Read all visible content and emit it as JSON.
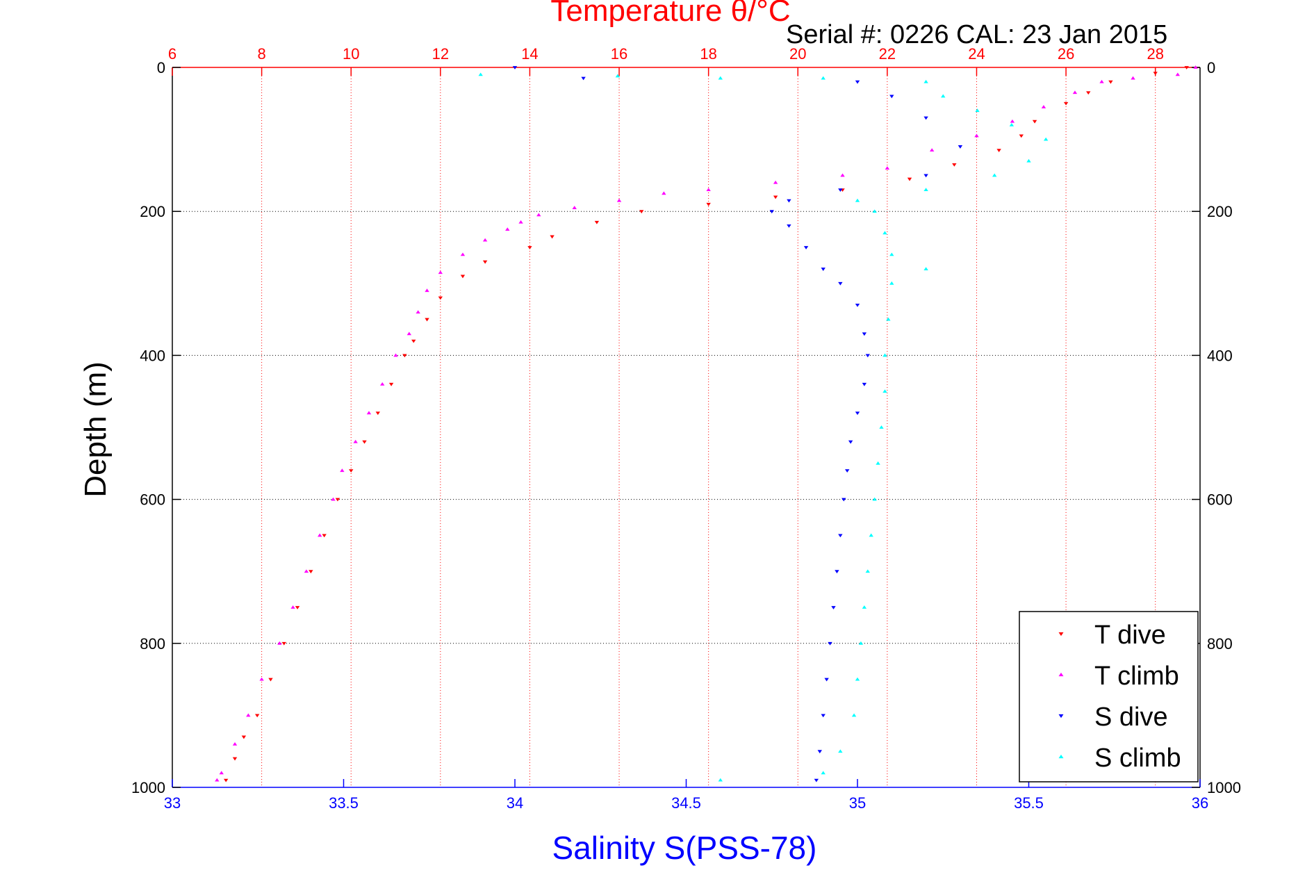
{
  "chart_data": {
    "type": "scatter",
    "title": "Temperature θ/°C",
    "subtitle": "Serial #: 0226  CAL: 23 Jan 2015",
    "xlabel": "Salinity S(PSS-78)",
    "ylabel": "Depth (m)",
    "x_bottom": {
      "quantity": "Salinity",
      "range": [
        33,
        36
      ],
      "ticks": [
        33,
        33.5,
        34,
        34.5,
        35,
        35.5,
        36
      ],
      "tick_labels": [
        "33",
        "33.5",
        "34",
        "34.5",
        "35",
        "35.5",
        "36"
      ],
      "color": "#0000ff"
    },
    "x_top": {
      "quantity": "Temperature",
      "range": [
        6,
        29
      ],
      "ticks": [
        6,
        8,
        10,
        12,
        14,
        16,
        18,
        20,
        22,
        24,
        26,
        28
      ],
      "tick_labels": [
        "6",
        "8",
        "10",
        "12",
        "14",
        "16",
        "18",
        "20",
        "22",
        "24",
        "26",
        "28"
      ],
      "color": "#ff0000",
      "grid": true
    },
    "y": {
      "range": [
        0,
        1000
      ],
      "reversed": true,
      "ticks": [
        0,
        200,
        400,
        600,
        800,
        1000
      ],
      "tick_labels": [
        "0",
        "200",
        "400",
        "600",
        "800",
        "1000"
      ],
      "grid": true
    },
    "legend": {
      "placement": "bottom-right",
      "entries": [
        {
          "label": "T dive",
          "color": "#ff0000",
          "marker": "triangle-down"
        },
        {
          "label": "T climb",
          "color": "#ff00ff",
          "marker": "triangle-up"
        },
        {
          "label": "S dive",
          "color": "#0000ff",
          "marker": "triangle-down"
        },
        {
          "label": "S climb",
          "color": "#00ffff",
          "marker": "triangle-up"
        }
      ]
    },
    "series": [
      {
        "name": "T dive",
        "axis": "top",
        "color": "#ff0000",
        "marker": "triangle-down",
        "points": [
          [
            28.7,
            0
          ],
          [
            28.0,
            8
          ],
          [
            27.0,
            20
          ],
          [
            26.5,
            35
          ],
          [
            26.0,
            50
          ],
          [
            25.3,
            75
          ],
          [
            25.0,
            95
          ],
          [
            24.5,
            115
          ],
          [
            23.5,
            135
          ],
          [
            22.5,
            155
          ],
          [
            21.0,
            170
          ],
          [
            19.5,
            180
          ],
          [
            18.0,
            190
          ],
          [
            16.5,
            200
          ],
          [
            15.5,
            215
          ],
          [
            14.5,
            235
          ],
          [
            14.0,
            250
          ],
          [
            13.0,
            270
          ],
          [
            12.5,
            290
          ],
          [
            12.0,
            320
          ],
          [
            11.7,
            350
          ],
          [
            11.4,
            380
          ],
          [
            11.2,
            400
          ],
          [
            10.9,
            440
          ],
          [
            10.6,
            480
          ],
          [
            10.3,
            520
          ],
          [
            10.0,
            560
          ],
          [
            9.7,
            600
          ],
          [
            9.4,
            650
          ],
          [
            9.1,
            700
          ],
          [
            8.8,
            750
          ],
          [
            8.5,
            800
          ],
          [
            8.2,
            850
          ],
          [
            7.9,
            900
          ],
          [
            7.6,
            930
          ],
          [
            7.4,
            960
          ],
          [
            7.2,
            990
          ]
        ]
      },
      {
        "name": "T climb",
        "axis": "top",
        "color": "#ff00ff",
        "marker": "triangle-up",
        "points": [
          [
            28.9,
            0
          ],
          [
            28.5,
            10
          ],
          [
            27.5,
            15
          ],
          [
            26.8,
            20
          ],
          [
            26.2,
            35
          ],
          [
            25.5,
            55
          ],
          [
            24.8,
            75
          ],
          [
            24.0,
            95
          ],
          [
            23.0,
            115
          ],
          [
            22.0,
            140
          ],
          [
            21.0,
            150
          ],
          [
            19.5,
            160
          ],
          [
            18.0,
            170
          ],
          [
            17.0,
            175
          ],
          [
            16.0,
            185
          ],
          [
            15.0,
            195
          ],
          [
            14.2,
            205
          ],
          [
            13.8,
            215
          ],
          [
            13.5,
            225
          ],
          [
            13.0,
            240
          ],
          [
            12.5,
            260
          ],
          [
            12.0,
            285
          ],
          [
            11.7,
            310
          ],
          [
            11.5,
            340
          ],
          [
            11.3,
            370
          ],
          [
            11.0,
            400
          ],
          [
            10.7,
            440
          ],
          [
            10.4,
            480
          ],
          [
            10.1,
            520
          ],
          [
            9.8,
            560
          ],
          [
            9.6,
            600
          ],
          [
            9.3,
            650
          ],
          [
            9.0,
            700
          ],
          [
            8.7,
            750
          ],
          [
            8.4,
            800
          ],
          [
            8.0,
            850
          ],
          [
            7.7,
            900
          ],
          [
            7.4,
            940
          ],
          [
            7.1,
            980
          ],
          [
            7.0,
            990
          ]
        ]
      },
      {
        "name": "S dive",
        "axis": "bottom",
        "color": "#0000ff",
        "marker": "triangle-down",
        "points": [
          [
            34.0,
            0
          ],
          [
            34.2,
            15
          ],
          [
            35.0,
            20
          ],
          [
            35.1,
            40
          ],
          [
            35.2,
            70
          ],
          [
            35.3,
            110
          ],
          [
            35.2,
            150
          ],
          [
            34.95,
            170
          ],
          [
            34.8,
            185
          ],
          [
            34.75,
            200
          ],
          [
            34.8,
            220
          ],
          [
            34.85,
            250
          ],
          [
            34.9,
            280
          ],
          [
            34.95,
            300
          ],
          [
            35.0,
            330
          ],
          [
            35.02,
            370
          ],
          [
            35.03,
            400
          ],
          [
            35.02,
            440
          ],
          [
            35.0,
            480
          ],
          [
            34.98,
            520
          ],
          [
            34.97,
            560
          ],
          [
            34.96,
            600
          ],
          [
            34.95,
            650
          ],
          [
            34.94,
            700
          ],
          [
            34.93,
            750
          ],
          [
            34.92,
            800
          ],
          [
            34.91,
            850
          ],
          [
            34.9,
            900
          ],
          [
            34.89,
            950
          ],
          [
            34.88,
            990
          ]
        ]
      },
      {
        "name": "S climb",
        "axis": "bottom",
        "color": "#00ffff",
        "marker": "triangle-up",
        "points": [
          [
            33.9,
            10
          ],
          [
            34.3,
            12
          ],
          [
            34.6,
            15
          ],
          [
            34.9,
            15
          ],
          [
            35.2,
            20
          ],
          [
            35.25,
            40
          ],
          [
            35.35,
            60
          ],
          [
            35.45,
            80
          ],
          [
            35.55,
            100
          ],
          [
            35.5,
            130
          ],
          [
            35.4,
            150
          ],
          [
            35.2,
            170
          ],
          [
            35.0,
            185
          ],
          [
            35.05,
            200
          ],
          [
            35.08,
            230
          ],
          [
            35.1,
            260
          ],
          [
            35.2,
            280
          ],
          [
            35.1,
            300
          ],
          [
            35.09,
            350
          ],
          [
            35.08,
            400
          ],
          [
            35.08,
            450
          ],
          [
            35.07,
            500
          ],
          [
            35.06,
            550
          ],
          [
            35.05,
            600
          ],
          [
            35.04,
            650
          ],
          [
            35.03,
            700
          ],
          [
            35.02,
            750
          ],
          [
            35.01,
            800
          ],
          [
            35.0,
            850
          ],
          [
            34.99,
            900
          ],
          [
            34.95,
            950
          ],
          [
            34.9,
            980
          ],
          [
            34.6,
            990
          ]
        ]
      }
    ]
  }
}
